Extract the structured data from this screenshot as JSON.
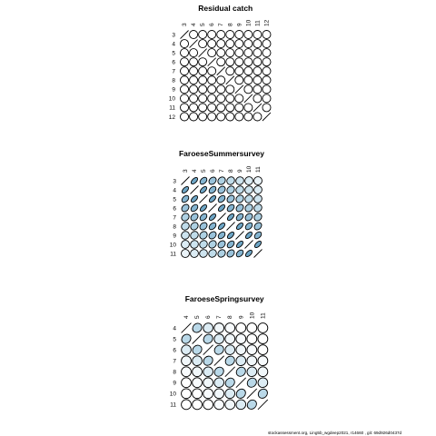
{
  "chart_data": [
    {
      "type": "correlation-ellipse-matrix",
      "title": "Residual catch",
      "ages": [
        "3",
        "4",
        "5",
        "6",
        "7",
        "8",
        "9",
        "10",
        "11",
        "12"
      ],
      "diagonal": "line",
      "matrix": [
        [
          1,
          0,
          0,
          0,
          0,
          0,
          0,
          0,
          0,
          0
        ],
        [
          0,
          1,
          0,
          0,
          0,
          0,
          0,
          0,
          0,
          0
        ],
        [
          0,
          0,
          1,
          0,
          0,
          0,
          0,
          0,
          0,
          0
        ],
        [
          0,
          0,
          0,
          1,
          0,
          0,
          0,
          0,
          0,
          0
        ],
        [
          0,
          0,
          0,
          0,
          1,
          0,
          0,
          0,
          0,
          0
        ],
        [
          0,
          0,
          0,
          0,
          0,
          1,
          0,
          0,
          0,
          0
        ],
        [
          0,
          0,
          0,
          0,
          0,
          0,
          1,
          0,
          0,
          0
        ],
        [
          0,
          0,
          0,
          0,
          0,
          0,
          0,
          1,
          0,
          0
        ],
        [
          0,
          0,
          0,
          0,
          0,
          0,
          0,
          0,
          1,
          0
        ],
        [
          0,
          0,
          0,
          0,
          0,
          0,
          0,
          0,
          0,
          1
        ]
      ]
    },
    {
      "type": "correlation-ellipse-matrix",
      "title": "FaroeseSummersurvey",
      "ages": [
        "3",
        "4",
        "5",
        "6",
        "7",
        "8",
        "9",
        "10",
        "11"
      ],
      "diagonal": "line",
      "matrix": [
        [
          1.0,
          0.85,
          0.75,
          0.65,
          0.55,
          0.45,
          0.35,
          0.25,
          0.15
        ],
        [
          0.85,
          1.0,
          0.85,
          0.75,
          0.65,
          0.55,
          0.45,
          0.35,
          0.25
        ],
        [
          0.75,
          0.85,
          1.0,
          0.85,
          0.75,
          0.65,
          0.55,
          0.45,
          0.35
        ],
        [
          0.65,
          0.75,
          0.85,
          1.0,
          0.85,
          0.75,
          0.65,
          0.55,
          0.45
        ],
        [
          0.55,
          0.65,
          0.75,
          0.85,
          1.0,
          0.85,
          0.75,
          0.65,
          0.55
        ],
        [
          0.45,
          0.55,
          0.65,
          0.75,
          0.85,
          1.0,
          0.85,
          0.75,
          0.65
        ],
        [
          0.35,
          0.45,
          0.55,
          0.65,
          0.75,
          0.85,
          1.0,
          0.85,
          0.75
        ],
        [
          0.25,
          0.35,
          0.45,
          0.55,
          0.65,
          0.75,
          0.85,
          1.0,
          0.85
        ],
        [
          0.15,
          0.25,
          0.35,
          0.45,
          0.55,
          0.65,
          0.75,
          0.85,
          1.0
        ]
      ]
    },
    {
      "type": "correlation-ellipse-matrix",
      "title": "FaroeseSpringsurvey",
      "ages": [
        "4",
        "5",
        "6",
        "7",
        "8",
        "9",
        "10",
        "11"
      ],
      "diagonal": "line",
      "matrix": [
        [
          1.0,
          0.5,
          0.25,
          0.1,
          0.05,
          0.0,
          0.0,
          0.0
        ],
        [
          0.5,
          1.0,
          0.5,
          0.25,
          0.1,
          0.05,
          0.0,
          0.0
        ],
        [
          0.25,
          0.5,
          1.0,
          0.5,
          0.25,
          0.1,
          0.05,
          0.0
        ],
        [
          0.1,
          0.25,
          0.5,
          1.0,
          0.5,
          0.25,
          0.1,
          0.05
        ],
        [
          0.05,
          0.1,
          0.25,
          0.5,
          1.0,
          0.5,
          0.25,
          0.1
        ],
        [
          0.0,
          0.05,
          0.1,
          0.25,
          0.5,
          1.0,
          0.5,
          0.25
        ],
        [
          0.0,
          0.0,
          0.05,
          0.1,
          0.25,
          0.5,
          1.0,
          0.5
        ],
        [
          0.0,
          0.0,
          0.0,
          0.05,
          0.1,
          0.25,
          0.5,
          1.0
        ]
      ]
    }
  ],
  "colors": {
    "low": "#ffffff",
    "mid": "#b9d8e8",
    "high": "#4e90b8",
    "stroke": "#000000"
  },
  "footer": "stockassessment.org, Ling5b_wgdeep2021,  r14660 ,  git:  69d926d0437d"
}
